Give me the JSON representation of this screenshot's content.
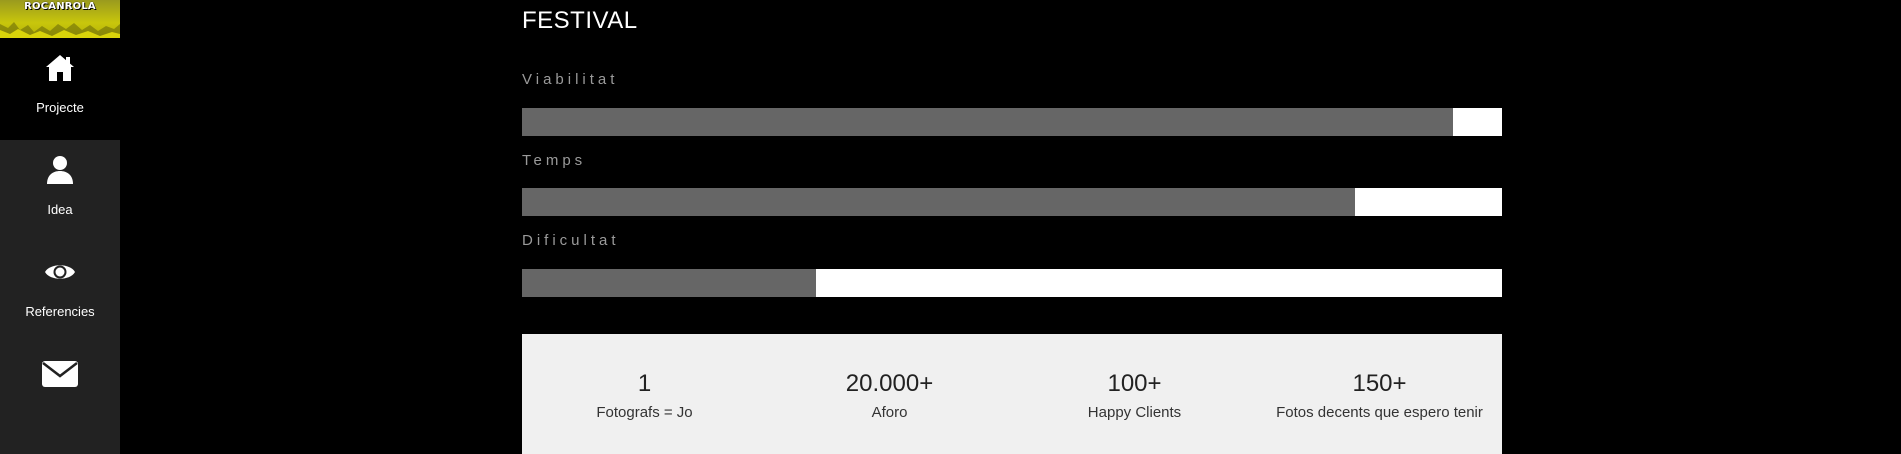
{
  "sidebar": {
    "logo_text": "ROCANROLA",
    "items": [
      {
        "label": "Projecte",
        "icon": "home-icon",
        "active": true
      },
      {
        "label": "Idea",
        "icon": "user-icon",
        "active": false
      },
      {
        "label": "Referencies",
        "icon": "eye-icon",
        "active": false
      },
      {
        "label": "",
        "icon": "envelope-icon",
        "active": false
      }
    ]
  },
  "main": {
    "title": "FESTIVAL",
    "skills": [
      {
        "label": "Viabilitat",
        "percent": 95
      },
      {
        "label": "Temps",
        "percent": 85
      },
      {
        "label": "Dificultat",
        "percent": 30
      }
    ],
    "stats": [
      {
        "number": "1",
        "label": "Fotografs = Jo"
      },
      {
        "number": "20.000+",
        "label": "Aforo"
      },
      {
        "number": "100+",
        "label": "Happy Clients"
      },
      {
        "number": "150+",
        "label": "Fotos decents que espero tenir"
      }
    ]
  },
  "colors": {
    "sidebar_bg": "#222222",
    "bar_fill": "#666666",
    "bar_track": "#ffffff",
    "stats_bg": "#f0f0f0",
    "logo_yellow": "#c8c60c"
  }
}
